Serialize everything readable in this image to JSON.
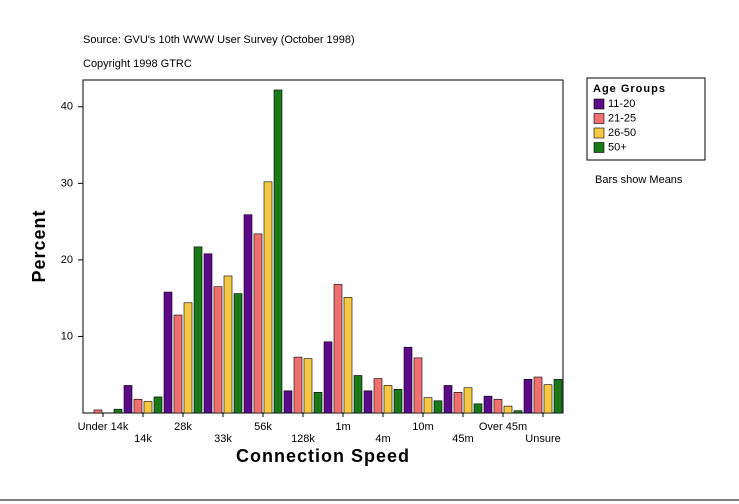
{
  "chart_data": {
    "type": "bar",
    "source": "Source: GVU's 10th WWW User Survey (October 1998)",
    "copyright": "Copyright 1998 GTRC",
    "note": "Bars show Means",
    "x_label": "Connection Speed",
    "y_label": "Percent",
    "legend_title": "Age Groups",
    "categories": [
      "Under 14k",
      "14k",
      "28k",
      "33k",
      "56k",
      "128k",
      "1m",
      "4m",
      "10m",
      "45m",
      "Over 45m",
      "Unsure"
    ],
    "series": [
      {
        "name": "11-20",
        "color": "#5a0a8a",
        "values": [
          0,
          3.6,
          15.8,
          20.8,
          25.9,
          2.9,
          9.3,
          2.9,
          8.6,
          3.6,
          2.2,
          4.4
        ]
      },
      {
        "name": "21-25",
        "color": "#f07070",
        "values": [
          0.4,
          1.8,
          12.8,
          16.5,
          23.4,
          7.3,
          16.8,
          4.5,
          7.2,
          2.7,
          1.8,
          4.7
        ]
      },
      {
        "name": "26-50",
        "color": "#f5c842",
        "values": [
          0,
          1.5,
          14.4,
          17.9,
          30.2,
          7.1,
          15.1,
          3.6,
          2.0,
          3.3,
          0.9,
          3.7
        ]
      },
      {
        "name": "50+",
        "color": "#1a7a1a",
        "values": [
          0.5,
          2.1,
          21.7,
          15.6,
          42.2,
          2.7,
          4.9,
          3.1,
          1.6,
          1.2,
          0.3,
          4.4
        ]
      }
    ],
    "ylim": [
      0,
      43.5
    ],
    "yticks": [
      10,
      20,
      30,
      40
    ],
    "legend": "right"
  }
}
